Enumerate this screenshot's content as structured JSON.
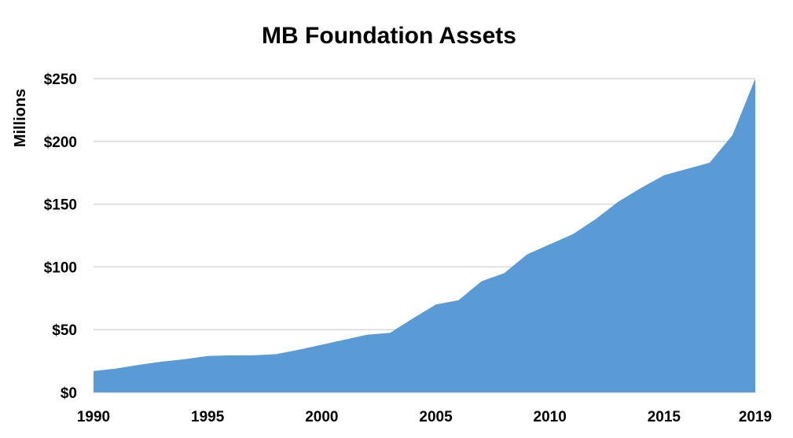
{
  "chart_data": {
    "type": "area",
    "title": "MB Foundation Assets",
    "ylabel": "Millions",
    "xlabel": "",
    "x_ticks": [
      "1990",
      "1995",
      "2000",
      "2005",
      "2010",
      "2015",
      "2019"
    ],
    "y_ticks": [
      "$0",
      "$50",
      "$100",
      "$150",
      "$200",
      "$250"
    ],
    "ylim": [
      0,
      250
    ],
    "xlim": [
      1990,
      2019
    ],
    "grid": true,
    "legend": "none",
    "series": [
      {
        "color": "#5b9bd5",
        "x": [
          1990,
          1991,
          1992,
          1993,
          1994,
          1995,
          1996,
          1997,
          1998,
          1999,
          2000,
          2001,
          2002,
          2003,
          2004,
          2005,
          2006,
          2007,
          2008,
          2009,
          2010,
          2011,
          2012,
          2013,
          2014,
          2015,
          2016,
          2017,
          2018,
          2019
        ],
        "values": [
          17,
          19,
          22,
          24.5,
          26.5,
          29,
          29.5,
          29.5,
          30.5,
          34,
          38,
          42,
          46,
          47.5,
          59,
          70,
          73.5,
          88.5,
          95,
          110,
          118,
          126,
          138,
          152,
          163,
          173,
          178,
          183,
          205,
          250
        ]
      }
    ]
  }
}
